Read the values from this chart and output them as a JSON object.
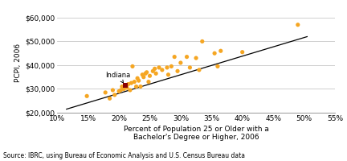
{
  "scatter_points": [
    [
      0.148,
      27000
    ],
    [
      0.178,
      28500
    ],
    [
      0.185,
      26000
    ],
    [
      0.19,
      29500
    ],
    [
      0.193,
      27500
    ],
    [
      0.2,
      29000
    ],
    [
      0.203,
      29500
    ],
    [
      0.205,
      31000
    ],
    [
      0.208,
      30000
    ],
    [
      0.213,
      30500
    ],
    [
      0.215,
      32000
    ],
    [
      0.218,
      29500
    ],
    [
      0.22,
      32500
    ],
    [
      0.222,
      39500
    ],
    [
      0.225,
      33000
    ],
    [
      0.228,
      31000
    ],
    [
      0.23,
      34500
    ],
    [
      0.232,
      33500
    ],
    [
      0.235,
      31000
    ],
    [
      0.238,
      36000
    ],
    [
      0.24,
      35000
    ],
    [
      0.243,
      36500
    ],
    [
      0.245,
      37000
    ],
    [
      0.248,
      33000
    ],
    [
      0.25,
      35500
    ],
    [
      0.255,
      37500
    ],
    [
      0.258,
      38500
    ],
    [
      0.26,
      36500
    ],
    [
      0.265,
      39000
    ],
    [
      0.27,
      38000
    ],
    [
      0.278,
      39000
    ],
    [
      0.28,
      36000
    ],
    [
      0.285,
      39500
    ],
    [
      0.29,
      43500
    ],
    [
      0.295,
      37500
    ],
    [
      0.3,
      41000
    ],
    [
      0.31,
      43500
    ],
    [
      0.315,
      39000
    ],
    [
      0.325,
      43000
    ],
    [
      0.33,
      38000
    ],
    [
      0.335,
      50000
    ],
    [
      0.355,
      45000
    ],
    [
      0.36,
      39500
    ],
    [
      0.365,
      46000
    ],
    [
      0.4,
      45500
    ],
    [
      0.49,
      57000
    ]
  ],
  "indiana_point": [
    0.21,
    31500
  ],
  "indiana_label": "Indiana",
  "scatter_color": "#F5A623",
  "indiana_color": "#8B0000",
  "line_x": [
    0.115,
    0.505
  ],
  "line_y": [
    21500,
    52000
  ],
  "xlabel": "Percent of Population 25 or Older with a\nBachelor's Degree or Higher, 2006",
  "ylabel": "PCPI, 2006",
  "xlim": [
    0.1,
    0.55
  ],
  "ylim": [
    20000,
    62000
  ],
  "xticks": [
    0.1,
    0.15,
    0.2,
    0.25,
    0.3,
    0.35,
    0.4,
    0.45,
    0.5,
    0.55
  ],
  "yticks": [
    20000,
    30000,
    40000,
    50000,
    60000
  ],
  "source_text": "Source: IBRC, using Bureau of Economic Analysis and U.S. Census Bureau data",
  "background_color": "#ffffff",
  "grid_color": "#c8c8c8"
}
